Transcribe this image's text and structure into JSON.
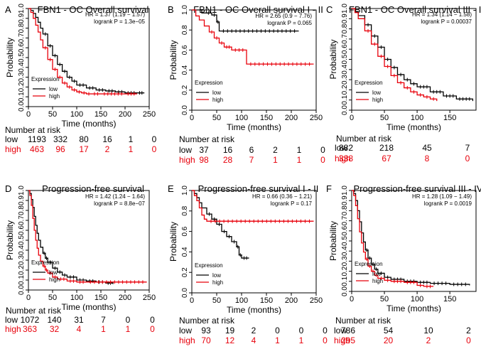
{
  "figure": {
    "risk_header": "Number at risk",
    "legend_title": "Expression",
    "legend_low": "low",
    "legend_high": "high",
    "colors": {
      "low": "#000000",
      "high": "#e8000b",
      "axis": "#000000"
    }
  },
  "chart_data": [
    {
      "type": "line",
      "panel": "A",
      "title": "FBN1 - OC Overall survival",
      "xlabel": "Time (months)",
      "ylabel": "Probability",
      "xlim": [
        0,
        250
      ],
      "ylim": [
        0,
        1
      ],
      "xticks": [
        0,
        50,
        100,
        150,
        200,
        250
      ],
      "yticks": [
        0,
        0.1,
        0.2,
        0.3,
        0.4,
        0.5,
        0.6,
        0.7,
        0.8,
        0.9,
        1
      ],
      "ytick_labels": [
        "0.0",
        "0.1",
        "0.2",
        "0.3",
        "0.4",
        "0.5",
        "0.6",
        "0.7",
        "0.8",
        "0.9",
        "1.0"
      ],
      "hr_text": "HR = 1.37 (1.19 − 1.57)",
      "logrank_text": "logrank P = 1.3e−05",
      "series": [
        {
          "name": "low",
          "x": [
            0,
            5,
            10,
            15,
            20,
            25,
            30,
            40,
            50,
            60,
            70,
            80,
            90,
            100,
            120,
            140,
            160,
            180,
            200,
            225,
            240
          ],
          "y": [
            1,
            0.98,
            0.95,
            0.91,
            0.86,
            0.8,
            0.74,
            0.62,
            0.52,
            0.43,
            0.36,
            0.3,
            0.26,
            0.22,
            0.19,
            0.17,
            0.16,
            0.15,
            0.14,
            0.14,
            0.14
          ]
        },
        {
          "name": "high",
          "x": [
            0,
            5,
            10,
            15,
            20,
            25,
            30,
            40,
            50,
            60,
            70,
            80,
            90,
            100,
            110,
            120,
            130,
            150,
            200,
            225
          ],
          "y": [
            1,
            0.96,
            0.9,
            0.83,
            0.76,
            0.68,
            0.6,
            0.48,
            0.38,
            0.3,
            0.24,
            0.2,
            0.17,
            0.15,
            0.14,
            0.13,
            0.13,
            0.13,
            0.13,
            0.13
          ]
        }
      ],
      "risk_times": [
        0,
        50,
        100,
        150,
        200,
        250
      ],
      "risk_low": [
        "1193",
        "332",
        "80",
        "16",
        "1",
        "0"
      ],
      "risk_high": [
        "463",
        "96",
        "17",
        "2",
        "1",
        "0"
      ]
    },
    {
      "type": "line",
      "panel": "B",
      "title": "FBN1 - OC Overall survival I - II",
      "xlabel": "Time (months)",
      "ylabel": "Probability",
      "xlim": [
        0,
        250
      ],
      "ylim": [
        0,
        1
      ],
      "xticks": [
        0,
        50,
        100,
        150,
        200,
        250
      ],
      "yticks": [
        0,
        0.2,
        0.4,
        0.6,
        0.8,
        1
      ],
      "ytick_labels": [
        "0.0",
        "0.2",
        "0.4",
        "0.6",
        "0.8",
        "1.0"
      ],
      "hr_text": "HR = 2.65 (0.9 − 7.76)",
      "logrank_text": "logrank P = 0.065",
      "series": [
        {
          "name": "low",
          "x": [
            0,
            20,
            40,
            50,
            55,
            215
          ],
          "y": [
            1,
            0.97,
            0.95,
            0.88,
            0.79,
            0.79
          ]
        },
        {
          "name": "high",
          "x": [
            0,
            8,
            15,
            25,
            35,
            45,
            55,
            65,
            80,
            110,
            245
          ],
          "y": [
            1,
            0.94,
            0.9,
            0.84,
            0.78,
            0.72,
            0.67,
            0.63,
            0.6,
            0.46,
            0.46
          ]
        }
      ],
      "risk_times": [
        0,
        50,
        100,
        150,
        200,
        250
      ],
      "risk_low": [
        "37",
        "16",
        "6",
        "2",
        "1",
        "0"
      ],
      "risk_high": [
        "98",
        "28",
        "7",
        "1",
        "1",
        "0"
      ]
    },
    {
      "type": "line",
      "panel": "C",
      "title": "FBN1 - OC Overall survival III - IV",
      "xlabel": "Time (months)",
      "ylabel": "Probability",
      "xlim": [
        0,
        190
      ],
      "ylim": [
        0,
        1
      ],
      "xticks": [
        0,
        50,
        100,
        150
      ],
      "yticks": [
        0,
        0.1,
        0.2,
        0.3,
        0.4,
        0.5,
        0.6,
        0.7,
        0.8,
        0.9,
        1
      ],
      "ytick_labels": [
        "0.0",
        "0.1",
        "0.2",
        "0.3",
        "0.4",
        "0.5",
        "0.6",
        "0.7",
        "0.8",
        "0.9",
        "1.0"
      ],
      "hr_text": "HR = 1.34 (1.14 − 1.58)",
      "logrank_text": "logrank P = 0.00037",
      "series": [
        {
          "name": "low",
          "x": [
            0,
            5,
            10,
            20,
            30,
            40,
            50,
            60,
            70,
            80,
            90,
            100,
            120,
            140,
            160,
            185
          ],
          "y": [
            1,
            0.97,
            0.93,
            0.84,
            0.73,
            0.62,
            0.5,
            0.42,
            0.35,
            0.3,
            0.26,
            0.23,
            0.18,
            0.14,
            0.11,
            0.09
          ]
        },
        {
          "name": "high",
          "x": [
            0,
            5,
            10,
            20,
            30,
            40,
            50,
            60,
            70,
            80,
            90,
            100,
            110,
            120,
            130
          ],
          "y": [
            1,
            0.96,
            0.9,
            0.78,
            0.65,
            0.53,
            0.43,
            0.34,
            0.27,
            0.22,
            0.18,
            0.15,
            0.13,
            0.11,
            0.09
          ]
        }
      ],
      "risk_times": [
        0,
        50,
        100,
        150
      ],
      "risk_low": [
        "882",
        "218",
        "45",
        "7"
      ],
      "risk_high": [
        "338",
        "67",
        "8",
        "0"
      ]
    },
    {
      "type": "line",
      "panel": "D",
      "title": "Progression-free survival",
      "xlabel": "Time (months)",
      "ylabel": "Probability",
      "xlim": [
        0,
        250
      ],
      "ylim": [
        0,
        1
      ],
      "xticks": [
        0,
        50,
        100,
        150,
        200,
        250
      ],
      "yticks": [
        0,
        0.1,
        0.2,
        0.3,
        0.4,
        0.5,
        0.6,
        0.7,
        0.8,
        0.9,
        1
      ],
      "ytick_labels": [
        "0.0",
        "0.1",
        "0.2",
        "0.3",
        "0.4",
        "0.5",
        "0.6",
        "0.7",
        "0.8",
        "0.9",
        "1.0"
      ],
      "hr_text": "HR = 1.42 (1.24 − 1.64)",
      "logrank_text": "logrank P = 8.8e−07",
      "series": [
        {
          "name": "low",
          "x": [
            0,
            3,
            6,
            9,
            12,
            15,
            18,
            21,
            25,
            30,
            35,
            40,
            50,
            60,
            70,
            80,
            100,
            120,
            140,
            160,
            175
          ],
          "y": [
            1,
            0.97,
            0.91,
            0.83,
            0.74,
            0.65,
            0.57,
            0.5,
            0.43,
            0.37,
            0.32,
            0.28,
            0.22,
            0.18,
            0.15,
            0.13,
            0.1,
            0.09,
            0.08,
            0.07,
            0.06
          ]
        },
        {
          "name": "high",
          "x": [
            0,
            3,
            6,
            9,
            12,
            15,
            18,
            21,
            25,
            30,
            35,
            40,
            50,
            60,
            80,
            100,
            120,
            245
          ],
          "y": [
            1,
            0.95,
            0.85,
            0.72,
            0.6,
            0.5,
            0.42,
            0.35,
            0.29,
            0.24,
            0.2,
            0.17,
            0.13,
            0.11,
            0.09,
            0.08,
            0.08,
            0.08
          ]
        }
      ],
      "risk_times": [
        0,
        50,
        100,
        150,
        200,
        250
      ],
      "risk_low": [
        "1072",
        "140",
        "31",
        "7",
        "0",
        "0"
      ],
      "risk_high": [
        "363",
        "32",
        "4",
        "1",
        "1",
        "0"
      ]
    },
    {
      "type": "line",
      "panel": "E",
      "title": "Progression-free survival I - II",
      "xlabel": "Time (months)",
      "ylabel": "Probability",
      "xlim": [
        0,
        250
      ],
      "ylim": [
        0,
        1
      ],
      "xticks": [
        0,
        50,
        100,
        150,
        200,
        250
      ],
      "yticks": [
        0,
        0.2,
        0.4,
        0.6,
        0.8,
        1
      ],
      "ytick_labels": [
        "0.0",
        "0.2",
        "0.4",
        "0.6",
        "0.8",
        "1.0"
      ],
      "hr_text": "HR = 0.66 (0.36 − 1.21)",
      "logrank_text": "logrank P = 0.17",
      "series": [
        {
          "name": "low",
          "x": [
            0,
            5,
            10,
            15,
            20,
            30,
            40,
            50,
            60,
            70,
            80,
            90,
            95,
            100,
            115
          ],
          "y": [
            1,
            0.97,
            0.93,
            0.88,
            0.83,
            0.77,
            0.72,
            0.67,
            0.6,
            0.55,
            0.5,
            0.45,
            0.37,
            0.34,
            0.34
          ]
        },
        {
          "name": "high",
          "x": [
            0,
            5,
            10,
            15,
            20,
            25,
            30,
            245
          ],
          "y": [
            1,
            0.95,
            0.9,
            0.83,
            0.76,
            0.72,
            0.7,
            0.7
          ]
        }
      ],
      "risk_times": [
        0,
        50,
        100,
        150,
        200,
        250
      ],
      "risk_low": [
        "93",
        "19",
        "2",
        "0",
        "0",
        "0"
      ],
      "risk_high": [
        "70",
        "12",
        "4",
        "1",
        "1",
        "0"
      ]
    },
    {
      "type": "line",
      "panel": "F",
      "title": "Progression-free survival III - IV",
      "xlabel": "Time (months)",
      "ylabel": "Probability",
      "xlim": [
        0,
        190
      ],
      "ylim": [
        0,
        1
      ],
      "xticks": [
        0,
        50,
        100,
        150
      ],
      "yticks": [
        0,
        0.1,
        0.2,
        0.3,
        0.4,
        0.5,
        0.6,
        0.7,
        0.8,
        0.9,
        1
      ],
      "ytick_labels": [
        "0.0",
        "0.1",
        "0.2",
        "0.3",
        "0.4",
        "0.5",
        "0.6",
        "0.7",
        "0.8",
        "0.9",
        "1.0"
      ],
      "hr_text": "HR = 1.28 (1.09 − 1.49)",
      "logrank_text": "logrank P = 0.0019",
      "series": [
        {
          "name": "low",
          "x": [
            0,
            3,
            6,
            9,
            12,
            15,
            18,
            21,
            25,
            30,
            35,
            40,
            50,
            60,
            80,
            100,
            120,
            150,
            180
          ],
          "y": [
            1,
            0.97,
            0.9,
            0.8,
            0.69,
            0.58,
            0.49,
            0.41,
            0.33,
            0.27,
            0.22,
            0.18,
            0.14,
            0.12,
            0.1,
            0.09,
            0.08,
            0.07,
            0.06
          ]
        },
        {
          "name": "high",
          "x": [
            0,
            3,
            6,
            9,
            12,
            15,
            18,
            21,
            25,
            30,
            35,
            40,
            50,
            60,
            80,
            100,
            110,
            125
          ],
          "y": [
            1,
            0.95,
            0.85,
            0.72,
            0.59,
            0.48,
            0.39,
            0.32,
            0.25,
            0.2,
            0.16,
            0.13,
            0.11,
            0.1,
            0.09,
            0.06,
            0.05,
            0.05
          ]
        }
      ],
      "risk_times": [
        0,
        50,
        100,
        150
      ],
      "risk_low": [
        "786",
        "54",
        "10",
        "2"
      ],
      "risk_high": [
        "295",
        "20",
        "2",
        "0"
      ]
    }
  ]
}
